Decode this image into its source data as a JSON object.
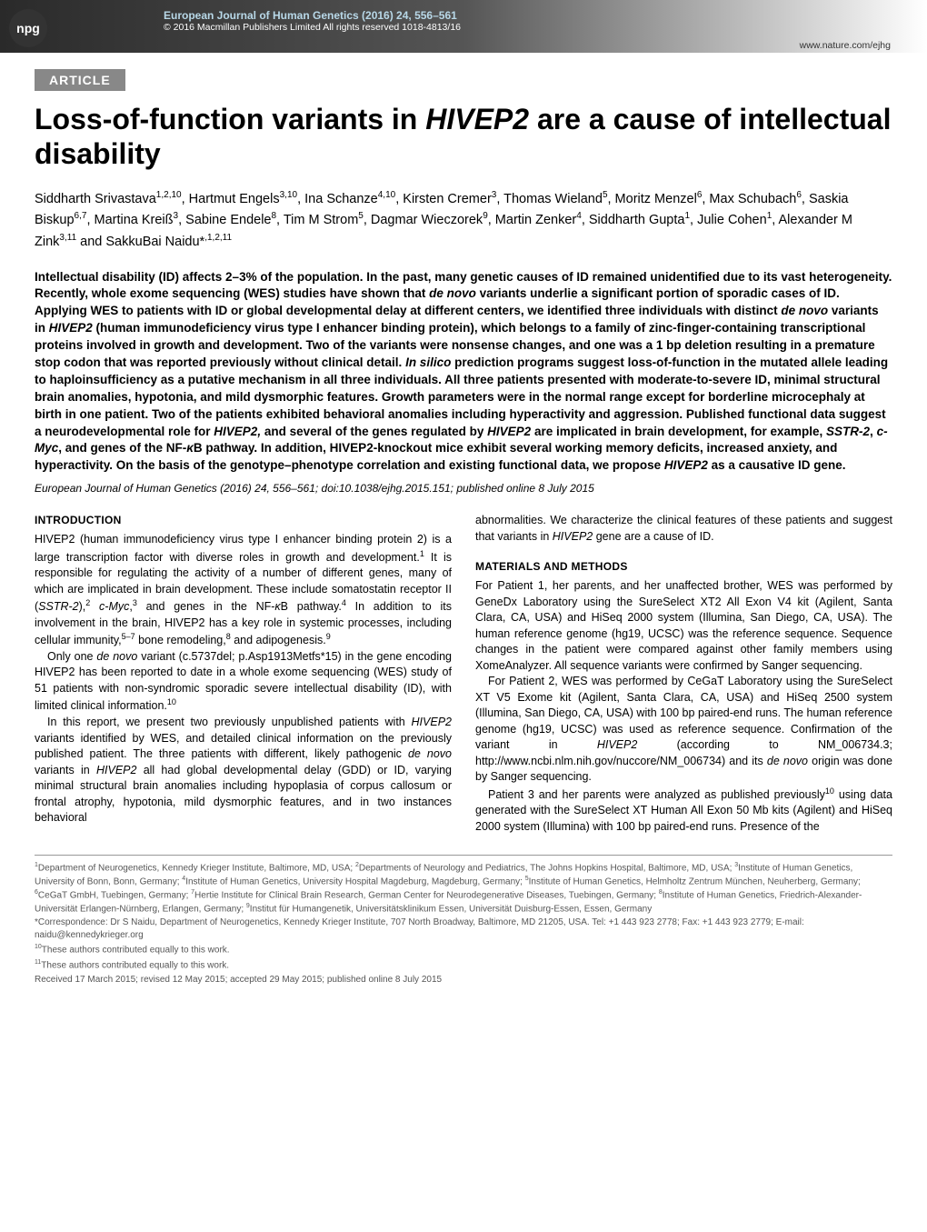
{
  "badge": "npg",
  "header": {
    "journal": "European Journal of Human Genetics (2016) 24, 556–561",
    "copyright": "© 2016 Macmillan Publishers Limited  All rights reserved 1018-4813/16",
    "website": "www.nature.com/ejhg"
  },
  "articleTag": "ARTICLE",
  "title": {
    "pre": "Loss-of-function variants in ",
    "gene": "HIVEP2",
    "post": " are a cause of intellectual disability"
  },
  "authorsHtml": "Siddharth Srivastava<sup>1,2,10</sup>, Hartmut Engels<sup>3,10</sup>, Ina Schanze<sup>4,10</sup>, Kirsten Cremer<sup>3</sup>, Thomas Wieland<sup>5</sup>, Moritz Menzel<sup>6</sup>, Max Schubach<sup>6</sup>, Saskia Biskup<sup>6,7</sup>, Martina Kreiß<sup>3</sup>, Sabine Endele<sup>8</sup>, Tim M Strom<sup>5</sup>, Dagmar Wieczorek<sup>9</sup>, Martin Zenker<sup>4</sup>, Siddharth Gupta<sup>1</sup>, Julie Cohen<sup>1</sup>, Alexander M Zink<sup>3,11</sup> and SakkuBai Naidu*<sup>,1,2,11</sup>",
  "abstractHtml": "Intellectual disability (ID) affects 2–3% of the population. In the past, many genetic causes of ID remained unidentified due to its vast heterogeneity. Recently, whole exome sequencing (WES) studies have shown that <span class=\"italic\">de novo</span> variants underlie a significant portion of sporadic cases of ID. Applying WES to patients with ID or global developmental delay at different centers, we identified three individuals with distinct <span class=\"italic\">de novo</span> variants in <span class=\"italic\">HIVEP2</span> (human immunodeficiency virus type I enhancer binding protein), which belongs to a family of zinc-finger-containing transcriptional proteins involved in growth and development. Two of the variants were nonsense changes, and one was a 1 bp deletion resulting in a premature stop codon that was reported previously without clinical detail. <span class=\"italic\">In silico</span> prediction programs suggest loss-of-function in the mutated allele leading to haploinsufficiency as a putative mechanism in all three individuals. All three patients presented with moderate-to-severe ID, minimal structural brain anomalies, hypotonia, and mild dysmorphic features. Growth parameters were in the normal range except for borderline microcephaly at birth in one patient. Two of the patients exhibited behavioral anomalies including hyperactivity and aggression. Published functional data suggest a neurodevelopmental role for <span class=\"italic\">HIVEP2,</span> and several of the genes regulated by <span class=\"italic\">HIVEP2</span> are implicated in brain development, for example, <span class=\"italic\">SSTR-2</span>, <span class=\"italic\">c-Myc</span>, and genes of the NF-<span class=\"italic\">κ</span>B pathway. In addition, HIVEP2-knockout mice exhibit several working memory deficits, increased anxiety, and hyperactivity. On the basis of the genotype–phenotype correlation and existing functional data, we propose <span class=\"italic\">HIVEP2</span> as a causative ID gene.",
  "doiLine": "European Journal of Human Genetics (2016) 24, 556–561; doi:10.1038/ejhg.2015.151; published online 8 July 2015",
  "intro": {
    "heading": "INTRODUCTION",
    "p1": "HIVEP2 (human immunodeficiency virus type I enhancer binding protein 2) is a large transcription factor with diverse roles in growth and development.<sup>1</sup> It is responsible for regulating the activity of a number of different genes, many of which are implicated in brain development. These include somatostatin receptor II (<span class=\"italic\">SSTR-2</span>),<sup>2</sup> <span class=\"italic\">c-Myc</span>,<sup>3</sup> and genes in the NF-<span class=\"italic\">κ</span>B pathway.<sup>4</sup> In addition to its involvement in the brain, HIVEP2 has a key role in systemic processes, including cellular immunity,<sup>5–7</sup> bone remodeling,<sup>8</sup> and adipogenesis.<sup>9</sup>",
    "p2": "Only one <span class=\"italic\">de novo</span> variant (c.5737del; p.Asp1913Metfs*15) in the gene encoding HIVEP2 has been reported to date in a whole exome sequencing (WES) study of 51 patients with non-syndromic sporadic severe intellectual disability (ID), with limited clinical information.<sup>10</sup>",
    "p3": "In this report, we present two previously unpublished patients with <span class=\"italic\">HIVEP2</span> variants identified by WES, and detailed clinical information on the previously published patient. The three patients with different, likely pathogenic <span class=\"italic\">de novo</span> variants in <span class=\"italic\">HIVEP2</span> all had global developmental delay (GDD) or ID, varying minimal structural brain anomalies including hypoplasia of corpus callosum or frontal atrophy, hypotonia, mild dysmorphic features, and in two instances behavioral"
  },
  "rightTop": "abnormalities. We characterize the clinical features of these patients and suggest that variants in <span class=\"italic\">HIVEP2</span> gene are a cause of ID.",
  "methods": {
    "heading": "MATERIALS AND METHODS",
    "p1": "For Patient 1, her parents, and her unaffected brother, WES was performed by GeneDx Laboratory using the SureSelect XT2 All Exon V4 kit (Agilent, Santa Clara, CA, USA) and HiSeq 2000 system (Illumina, San Diego, CA, USA). The human reference genome (hg19, UCSC) was the reference sequence. Sequence changes in the patient were compared against other family members using XomeAnalyzer. All sequence variants were confirmed by Sanger sequencing.",
    "p2": "For Patient 2, WES was performed by CeGaT Laboratory using the SureSelect XT V5 Exome kit (Agilent, Santa Clara, CA, USA) and HiSeq 2500 system (Illumina, San Diego, CA, USA) with 100 bp paired-end runs. The human reference genome (hg19, UCSC) was used as reference sequence. Confirmation of the variant in <span class=\"italic\">HIVEP2</span> (according to NM_006734.3; http://www.ncbi.nlm.nih.gov/nuccore/NM_006734) and its <span class=\"italic\">de novo</span> origin was done by Sanger sequencing.",
    "p3": "Patient 3 and her parents were analyzed as published previously<sup>10</sup> using data generated with the SureSelect XT Human All Exon 50 Mb kits (Agilent) and HiSeq 2000 system (Illumina) with 100 bp paired-end runs. Presence of the"
  },
  "footer": {
    "affiliations": "<sup>1</sup>Department of Neurogenetics, Kennedy Krieger Institute, Baltimore, MD, USA; <sup>2</sup>Departments of Neurology and Pediatrics, The Johns Hopkins Hospital, Baltimore, MD, USA; <sup>3</sup>Institute of Human Genetics, University of Bonn, Bonn, Germany; <sup>4</sup>Institute of Human Genetics, University Hospital Magdeburg, Magdeburg, Germany; <sup>5</sup>Institute of Human Genetics, Helmholtz Zentrum München, Neuherberg, Germany; <sup>6</sup>CeGaT GmbH, Tuebingen, Germany; <sup>7</sup>Hertie Institute for Clinical Brain Research, German Center for Neurodegenerative Diseases, Tuebingen, Germany; <sup>8</sup>Institute of Human Genetics, Friedrich-Alexander-Universität Erlangen-Nürnberg, Erlangen, Germany; <sup>9</sup>Institut für Humangenetik, Universitätsklinikum Essen, Universität Duisburg-Essen, Essen, Germany",
    "correspondence": "*Correspondence: Dr S Naidu, Department of Neurogenetics, Kennedy Krieger Institute, 707 North Broadway, Baltimore, MD 21205, USA. Tel: +1 443 923 2778; Fax: +1 443 923 2779; E-mail: naidu@kennedykrieger.org",
    "note10": "<sup>10</sup>These authors contributed equally to this work.",
    "note11": "<sup>11</sup>These authors contributed equally to this work.",
    "received": "Received 17 March 2015; revised 12 May 2015; accepted 29 May 2015; published online 8 July 2015"
  }
}
